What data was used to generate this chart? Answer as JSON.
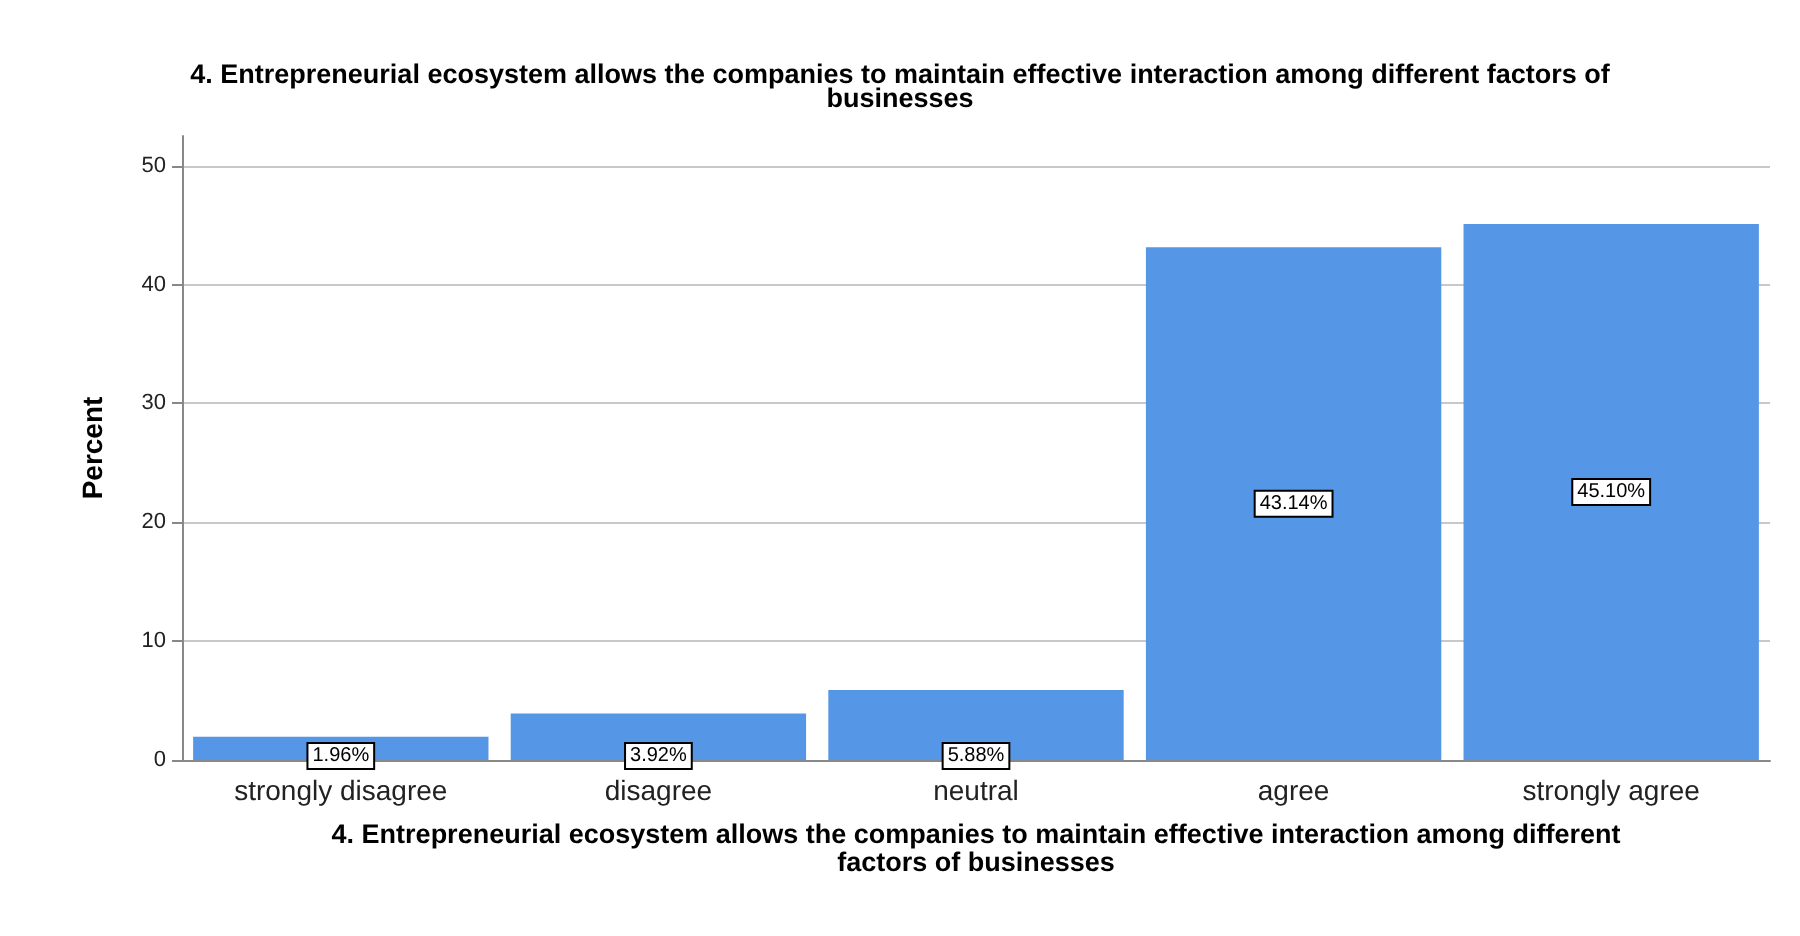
{
  "chart_data": {
    "type": "bar",
    "title": "4. Entrepreneurial ecosystem allows the companies to maintain effective interaction among different factors of\nbusinesses",
    "xlabel": "4. Entrepreneurial ecosystem allows the companies to maintain effective interaction among different\nfactors of businesses",
    "ylabel": "Percent",
    "categories": [
      "strongly disagree",
      "disagree",
      "neutral",
      "agree",
      "strongly agree"
    ],
    "values": [
      1.96,
      3.92,
      5.88,
      43.14,
      45.1
    ],
    "value_labels": [
      "1.96%",
      "3.92%",
      "5.88%",
      "43.14%",
      "45.10%"
    ],
    "color": "#5596e6",
    "ylim": [
      0,
      52.5
    ],
    "yticks": [
      0,
      10,
      20,
      30,
      40,
      50
    ],
    "grid": "y"
  }
}
